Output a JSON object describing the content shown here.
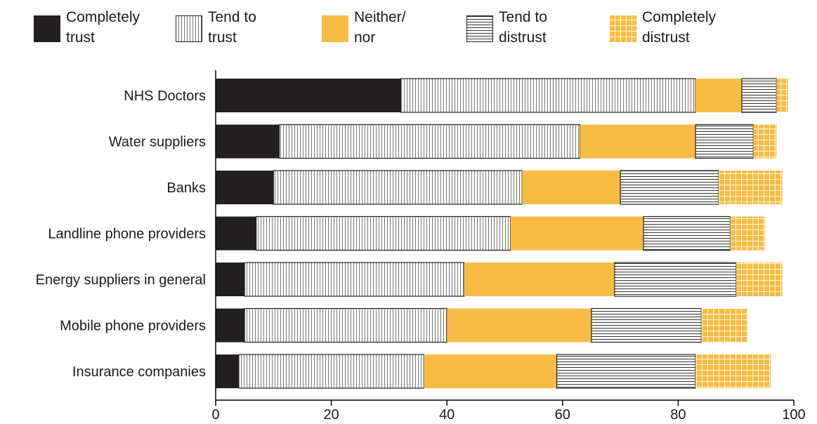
{
  "chart_data": {
    "type": "bar",
    "orientation": "horizontal",
    "stacked": true,
    "categories": [
      "NHS Doctors",
      "Water suppliers",
      "Banks",
      "Landline phone providers",
      "Energy suppliers in general",
      "Mobile phone providers",
      "Insurance companies"
    ],
    "series": [
      {
        "name": "Completely trust",
        "label_lines": [
          "Completely",
          "trust"
        ],
        "pattern": "solid-black",
        "color": "#231f20",
        "values": [
          32,
          11,
          10,
          7,
          5,
          5,
          4
        ]
      },
      {
        "name": "Tend to trust",
        "label_lines": [
          "Tend to",
          "trust"
        ],
        "pattern": "vertical-lines",
        "color": "#ffffff",
        "values": [
          51,
          52,
          43,
          44,
          38,
          35,
          32
        ]
      },
      {
        "name": "Neither/ nor",
        "label_lines": [
          "Neither/",
          "nor"
        ],
        "pattern": "solid-orange",
        "color": "#f8bc44",
        "values": [
          8,
          20,
          17,
          23,
          26,
          25,
          23
        ]
      },
      {
        "name": "Tend to distrust",
        "label_lines": [
          "Tend to",
          "distrust"
        ],
        "pattern": "horizontal-lines",
        "color": "#ffffff",
        "values": [
          6,
          10,
          17,
          15,
          21,
          19,
          24
        ]
      },
      {
        "name": "Completely distrust",
        "label_lines": [
          "Completely",
          "distrust"
        ],
        "pattern": "orange-grid",
        "color": "#f8bc44",
        "values": [
          2,
          4,
          11,
          6,
          8,
          8,
          13
        ]
      }
    ],
    "xlim": [
      0,
      100
    ],
    "xticks": [
      0,
      20,
      40,
      60,
      80,
      100
    ],
    "legend_position": "top",
    "grid": false
  }
}
